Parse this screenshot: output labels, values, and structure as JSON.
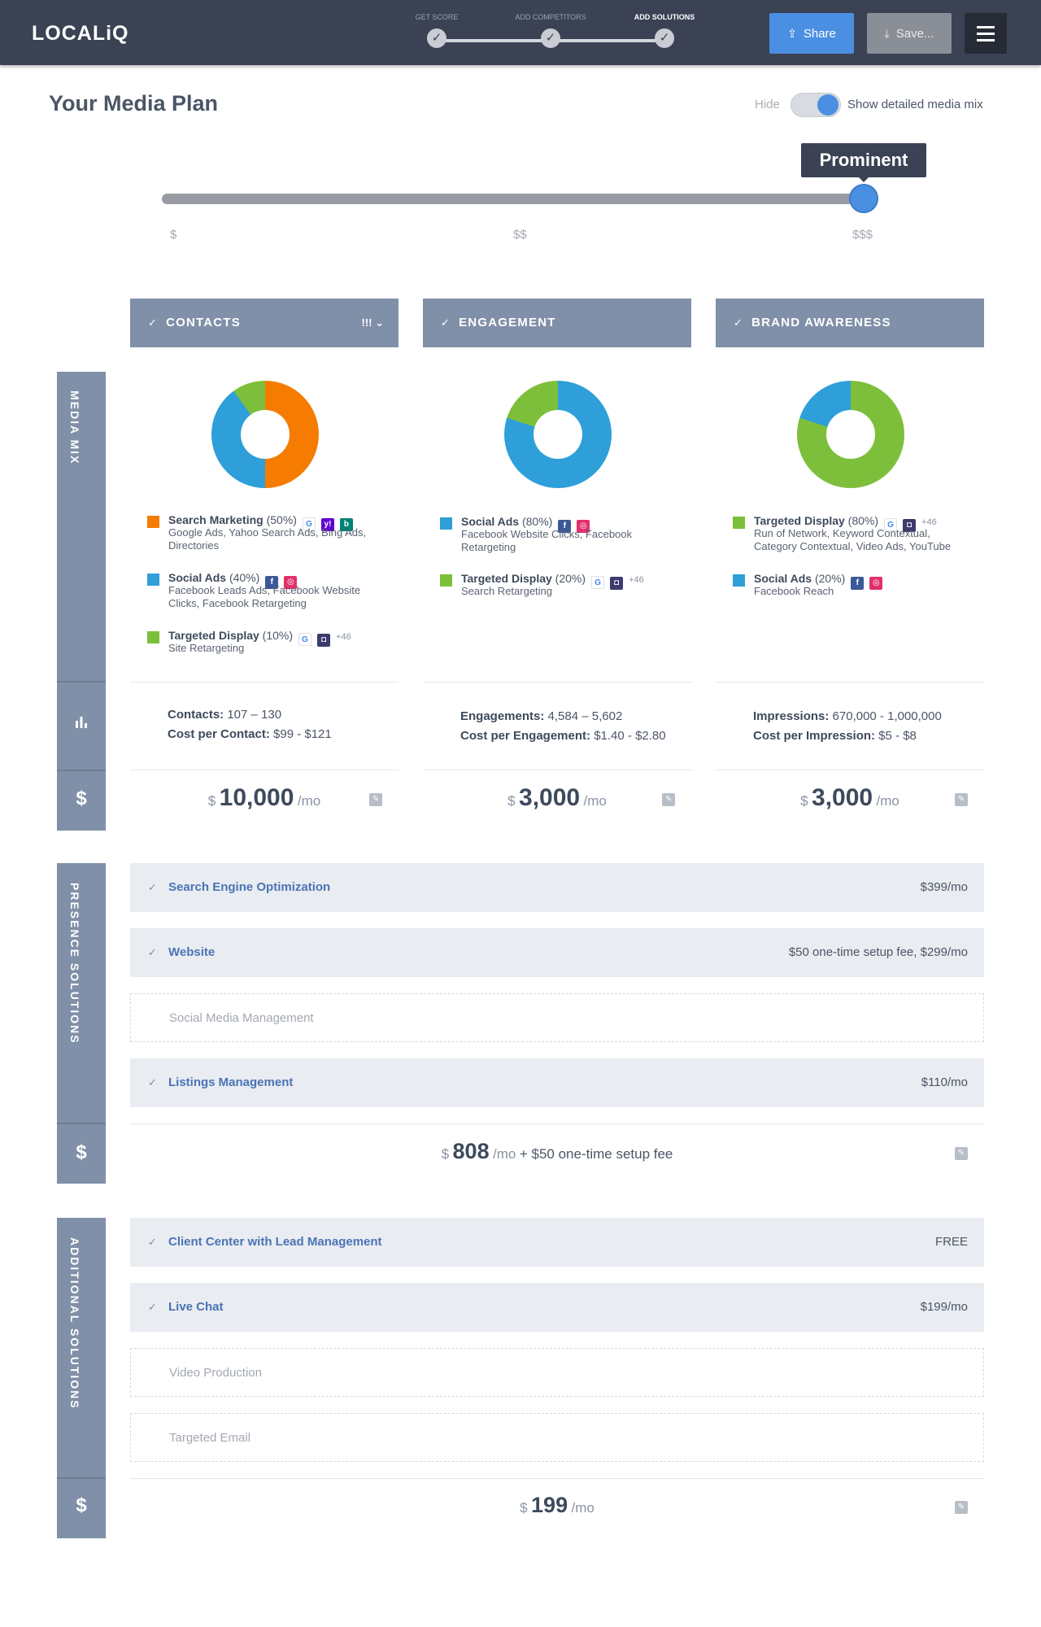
{
  "app": {
    "logo": "LOCALiQ",
    "steps": [
      {
        "label": "GET SCORE",
        "active": false
      },
      {
        "label": "ADD COMPETITORS",
        "active": false
      },
      {
        "label": "ADD SOLUTIONS",
        "active": true
      }
    ],
    "step_check": "✓",
    "share_label": "Share",
    "save_label": "Save...",
    "share_icon": "share-icon",
    "save_icon": "download-icon",
    "menu_icon": "hamburger-menu-icon"
  },
  "header": {
    "title": "Your Media Plan",
    "toggle_hide_label": "Hide",
    "toggle_show_label": "Show detailed media mix",
    "toggle_on": true
  },
  "budget_slider": {
    "tooltip": "Prominent",
    "ticks": [
      "$",
      "$$",
      "$$$"
    ],
    "selected_index": 2,
    "position_fraction": 0.98
  },
  "colors": {
    "orange": "#f57c00",
    "blue": "#2e9fd8",
    "green": "#7dbf3b",
    "header_bg": "#3a4254",
    "panel": "#8090a8",
    "accent": "#4a8fe2"
  },
  "media_mix_label": "MEDIA MIX",
  "presence_label": "PRESENCE SOLUTIONS",
  "additional_label": "ADDITIONAL SOLUTIONS",
  "currency_symbol": "$",
  "chart_icon": "bar-chart-icon",
  "columns": [
    {
      "heading": "CONTACTS",
      "extra": "!!! ⌄",
      "legend": [
        {
          "name": "Search Marketing",
          "pct": "(50%)",
          "desc": "Google Ads, Yahoo Search Ads, Bing Ads, Directories",
          "icons": [
            "google-icon",
            "yahoo-icon",
            "bing-icon"
          ]
        },
        {
          "name": "Social Ads",
          "pct": "(40%)",
          "desc": "Facebook Leads Ads, Facebook Website Clicks, Facebook Retargeting",
          "icons": [
            "facebook-icon",
            "instagram-icon"
          ]
        },
        {
          "name": "Targeted Display",
          "pct": "(10%)",
          "desc": "Site Retargeting",
          "icons": [
            "google-icon",
            "display-network-icon"
          ],
          "plus": "+46"
        }
      ],
      "stat1_label": "Contacts:",
      "stat1_value": "107 – 130",
      "stat2_label": "Cost per Contact:",
      "stat2_value": "$99 - $121",
      "price_currency": "$",
      "price": "10,000",
      "price_period": "/mo"
    },
    {
      "heading": "ENGAGEMENT",
      "legend": [
        {
          "name": "Social Ads",
          "pct": "(80%)",
          "desc": "Facebook Website Clicks, Facebook Retargeting",
          "icons": [
            "facebook-icon",
            "instagram-icon"
          ]
        },
        {
          "name": "Targeted Display",
          "pct": "(20%)",
          "desc": "Search Retargeting",
          "icons": [
            "google-icon",
            "display-network-icon"
          ],
          "plus": "+46"
        }
      ],
      "stat1_label": "Engagements:",
      "stat1_value": "4,584 – 5,602",
      "stat2_label": "Cost per Engagement:",
      "stat2_value": "$1.40 - $2.80",
      "price_currency": "$",
      "price": "3,000",
      "price_period": "/mo"
    },
    {
      "heading": "BRAND AWARENESS",
      "legend": [
        {
          "name": "Targeted Display",
          "pct": "(80%)",
          "desc": "Run of Network, Keyword Contextual, Category Contextual, Video Ads, YouTube",
          "icons": [
            "google-icon",
            "display-network-icon"
          ],
          "plus": "+46"
        },
        {
          "name": "Social Ads",
          "pct": "(20%)",
          "desc": "Facebook Reach",
          "icons": [
            "facebook-icon",
            "instagram-icon"
          ]
        }
      ],
      "stat1_label": "Impressions:",
      "stat1_value": "670,000 - 1,000,000",
      "stat2_label": "Cost per Impression:",
      "stat2_value": "$5 - $8",
      "price_currency": "$",
      "price": "3,000",
      "price_period": "/mo"
    }
  ],
  "presence_solutions": [
    {
      "label": "Search Engine Optimization",
      "value": "$399/mo",
      "selected": true
    },
    {
      "label": "Website",
      "value": "$50 one-time setup fee, $299/mo",
      "selected": true
    },
    {
      "label": "Social Media Management",
      "value": "",
      "selected": false
    },
    {
      "label": "Listings Management",
      "value": "$110/mo",
      "selected": true
    }
  ],
  "presence_total": {
    "currency": "$",
    "amount": "808",
    "period": "/mo",
    "fee": "+ $50 one-time setup fee"
  },
  "additional_solutions": [
    {
      "label": "Client Center with Lead Management",
      "value": "FREE",
      "selected": true
    },
    {
      "label": "Live Chat",
      "value": "$199/mo",
      "selected": true
    },
    {
      "label": "Video Production",
      "value": "",
      "selected": false
    },
    {
      "label": "Targeted Email",
      "value": "",
      "selected": false
    }
  ],
  "additional_total": {
    "currency": "$",
    "amount": "199",
    "period": "/mo"
  },
  "chart_data": [
    {
      "type": "pie",
      "title": "",
      "categories": [
        "Search Marketing",
        "Social Ads",
        "Targeted Display"
      ],
      "values": [
        50,
        40,
        10
      ]
    },
    {
      "type": "pie",
      "title": "",
      "categories": [
        "Social Ads",
        "Targeted Display"
      ],
      "values": [
        80,
        20
      ]
    },
    {
      "type": "pie",
      "title": "",
      "categories": [
        "Targeted Display",
        "Social Ads"
      ],
      "values": [
        80,
        20
      ]
    }
  ]
}
